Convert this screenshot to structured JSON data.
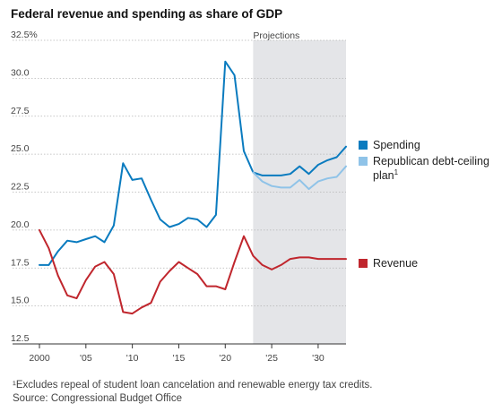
{
  "title": "Federal revenue and spending as share of GDP",
  "footnote": "¹Excludes repeal of student loan cancelation and renewable energy tax credits.",
  "source": "Source: Congressional Budget Office",
  "chart_data": {
    "type": "line",
    "projection_label": "Projections",
    "projection_start": 2023,
    "xlim": [
      2000,
      2033
    ],
    "ylim": [
      12.5,
      32.5
    ],
    "y_ticks": [
      12.5,
      15.0,
      17.5,
      20.0,
      22.5,
      25.0,
      27.5,
      30.0,
      32.5
    ],
    "y_tick_labels": [
      "12.5",
      "15.0",
      "17.5",
      "20.0",
      "22.5",
      "25.0",
      "27.5",
      "30.0",
      "32.5%"
    ],
    "x_ticks": [
      2000,
      2005,
      2010,
      2015,
      2020,
      2025,
      2030
    ],
    "x_tick_labels": [
      "2000",
      "'05",
      "'10",
      "'15",
      "'20",
      "'25",
      "'30"
    ],
    "colors": {
      "spending": "#0a7bbf",
      "plan": "#8fc3e8",
      "revenue": "#c0262d",
      "projection_shade": "#e4e5e8"
    },
    "series": [
      {
        "key": "spending",
        "name": "Spending",
        "x": [
          2000,
          2001,
          2002,
          2003,
          2004,
          2005,
          2006,
          2007,
          2008,
          2009,
          2010,
          2011,
          2012,
          2013,
          2014,
          2015,
          2016,
          2017,
          2018,
          2019,
          2020,
          2021,
          2022,
          2023,
          2024,
          2025,
          2026,
          2027,
          2028,
          2029,
          2030,
          2031,
          2032,
          2033
        ],
        "y": [
          17.7,
          17.7,
          18.6,
          19.3,
          19.2,
          19.4,
          19.6,
          19.2,
          20.3,
          24.4,
          23.3,
          23.4,
          22.0,
          20.7,
          20.2,
          20.4,
          20.8,
          20.7,
          20.2,
          21.0,
          31.1,
          30.2,
          25.2,
          23.8,
          23.6,
          23.6,
          23.6,
          23.7,
          24.2,
          23.7,
          24.3,
          24.6,
          24.8,
          25.5
        ]
      },
      {
        "key": "plan",
        "name": "Republican debt-ceiling plan",
        "name_sup": "1",
        "x": [
          2023,
          2024,
          2025,
          2026,
          2027,
          2028,
          2029,
          2030,
          2031,
          2032,
          2033
        ],
        "y": [
          23.8,
          23.2,
          22.9,
          22.8,
          22.8,
          23.3,
          22.7,
          23.2,
          23.4,
          23.5,
          24.2
        ]
      },
      {
        "key": "revenue",
        "name": "Revenue",
        "x": [
          2000,
          2001,
          2002,
          2003,
          2004,
          2005,
          2006,
          2007,
          2008,
          2009,
          2010,
          2011,
          2012,
          2013,
          2014,
          2015,
          2016,
          2017,
          2018,
          2019,
          2020,
          2021,
          2022,
          2023,
          2024,
          2025,
          2026,
          2027,
          2028,
          2029,
          2030,
          2031,
          2032,
          2033
        ],
        "y": [
          20.0,
          18.8,
          17.0,
          15.7,
          15.5,
          16.7,
          17.6,
          17.9,
          17.1,
          14.6,
          14.5,
          14.9,
          15.2,
          16.6,
          17.3,
          17.9,
          17.5,
          17.1,
          16.3,
          16.3,
          16.1,
          17.9,
          19.6,
          18.3,
          17.7,
          17.4,
          17.7,
          18.1,
          18.2,
          18.2,
          18.1,
          18.1,
          18.1,
          18.1
        ]
      }
    ],
    "legend": {
      "spending_label": "Spending",
      "plan_label_line1": "Republican debt-ceiling",
      "plan_label_line2": "plan",
      "plan_sup": "1",
      "revenue_label": "Revenue"
    }
  }
}
